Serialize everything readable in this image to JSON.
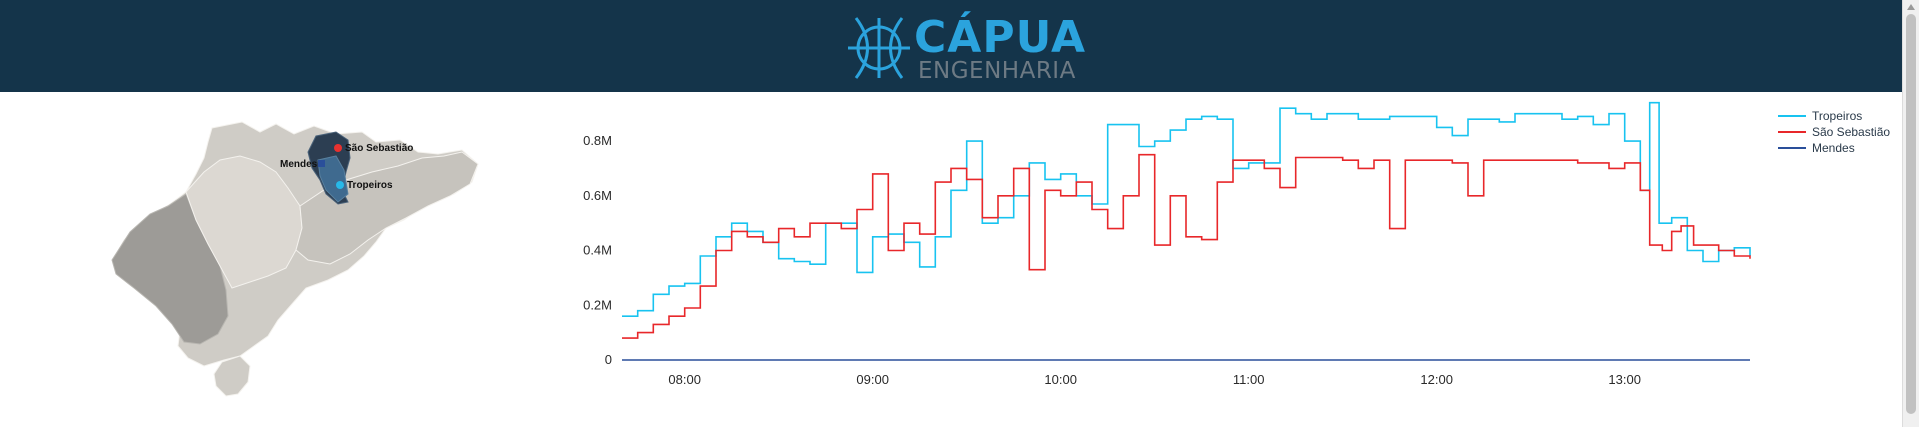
{
  "header": {
    "brand_title": "CÁPUA",
    "brand_subtitle": "ENGENHARIA",
    "logo_icon": "capua-globe-icon",
    "background_color": "#14344a",
    "accent_color": "#2ba3dd"
  },
  "map": {
    "markers": [
      {
        "label": "São Sebastião",
        "color": "#e8312f"
      },
      {
        "label": "Mendes",
        "color": "#2a4f9a"
      },
      {
        "label": "Tropeiros",
        "color": "#27b8e8"
      }
    ]
  },
  "chart_data": {
    "type": "line",
    "title": "",
    "xlabel": "",
    "ylabel": "",
    "x_ticks": [
      "08:00",
      "09:00",
      "10:00",
      "11:00",
      "12:00",
      "13:00"
    ],
    "y_ticks": [
      "0",
      "0.2M",
      "0.4M",
      "0.6M",
      "0.8M"
    ],
    "xlim": [
      "07:40",
      "13:40"
    ],
    "ylim": [
      0,
      0.95
    ],
    "grid": false,
    "legend_position": "top-right",
    "series": [
      {
        "name": "Tropeiros",
        "color": "#18c3f0",
        "points": [
          [
            "07:40",
            0.16
          ],
          [
            "07:45",
            0.18
          ],
          [
            "07:50",
            0.24
          ],
          [
            "07:55",
            0.27
          ],
          [
            "08:00",
            0.28
          ],
          [
            "08:05",
            0.38
          ],
          [
            "08:10",
            0.45
          ],
          [
            "08:15",
            0.5
          ],
          [
            "08:20",
            0.47
          ],
          [
            "08:25",
            0.43
          ],
          [
            "08:30",
            0.37
          ],
          [
            "08:35",
            0.36
          ],
          [
            "08:40",
            0.35
          ],
          [
            "08:45",
            0.5
          ],
          [
            "08:50",
            0.5
          ],
          [
            "08:55",
            0.32
          ],
          [
            "09:00",
            0.45
          ],
          [
            "09:05",
            0.46
          ],
          [
            "09:10",
            0.43
          ],
          [
            "09:15",
            0.34
          ],
          [
            "09:20",
            0.45
          ],
          [
            "09:25",
            0.62
          ],
          [
            "09:30",
            0.8
          ],
          [
            "09:35",
            0.5
          ],
          [
            "09:40",
            0.52
          ],
          [
            "09:45",
            0.6
          ],
          [
            "09:50",
            0.72
          ],
          [
            "09:55",
            0.66
          ],
          [
            "10:00",
            0.68
          ],
          [
            "10:05",
            0.6
          ],
          [
            "10:10",
            0.57
          ],
          [
            "10:15",
            0.86
          ],
          [
            "10:20",
            0.86
          ],
          [
            "10:25",
            0.78
          ],
          [
            "10:30",
            0.8
          ],
          [
            "10:35",
            0.84
          ],
          [
            "10:40",
            0.88
          ],
          [
            "10:45",
            0.89
          ],
          [
            "10:50",
            0.88
          ],
          [
            "10:55",
            0.7
          ],
          [
            "11:00",
            0.72
          ],
          [
            "11:05",
            0.72
          ],
          [
            "11:10",
            0.92
          ],
          [
            "11:15",
            0.9
          ],
          [
            "11:20",
            0.88
          ],
          [
            "11:25",
            0.9
          ],
          [
            "11:30",
            0.9
          ],
          [
            "11:35",
            0.88
          ],
          [
            "11:40",
            0.88
          ],
          [
            "11:45",
            0.89
          ],
          [
            "11:50",
            0.89
          ],
          [
            "11:55",
            0.89
          ],
          [
            "12:00",
            0.85
          ],
          [
            "12:05",
            0.82
          ],
          [
            "12:10",
            0.88
          ],
          [
            "12:15",
            0.88
          ],
          [
            "12:20",
            0.87
          ],
          [
            "12:25",
            0.9
          ],
          [
            "12:30",
            0.9
          ],
          [
            "12:35",
            0.9
          ],
          [
            "12:40",
            0.88
          ],
          [
            "12:45",
            0.89
          ],
          [
            "12:50",
            0.86
          ],
          [
            "12:55",
            0.9
          ],
          [
            "13:00",
            0.8
          ],
          [
            "13:05",
            0.62
          ],
          [
            "13:08",
            0.94
          ],
          [
            "13:11",
            0.5
          ],
          [
            "13:15",
            0.52
          ],
          [
            "13:20",
            0.4
          ],
          [
            "13:25",
            0.36
          ],
          [
            "13:30",
            0.4
          ],
          [
            "13:35",
            0.41
          ],
          [
            "13:40",
            0.38
          ]
        ]
      },
      {
        "name": "São Sebastião",
        "color": "#e8272a",
        "points": [
          [
            "07:40",
            0.08
          ],
          [
            "07:45",
            0.1
          ],
          [
            "07:50",
            0.13
          ],
          [
            "07:55",
            0.16
          ],
          [
            "08:00",
            0.19
          ],
          [
            "08:05",
            0.27
          ],
          [
            "08:10",
            0.4
          ],
          [
            "08:15",
            0.47
          ],
          [
            "08:20",
            0.45
          ],
          [
            "08:25",
            0.43
          ],
          [
            "08:30",
            0.48
          ],
          [
            "08:35",
            0.45
          ],
          [
            "08:40",
            0.5
          ],
          [
            "08:45",
            0.5
          ],
          [
            "08:50",
            0.48
          ],
          [
            "08:55",
            0.55
          ],
          [
            "09:00",
            0.68
          ],
          [
            "09:05",
            0.4
          ],
          [
            "09:10",
            0.5
          ],
          [
            "09:15",
            0.46
          ],
          [
            "09:20",
            0.65
          ],
          [
            "09:25",
            0.7
          ],
          [
            "09:30",
            0.66
          ],
          [
            "09:35",
            0.52
          ],
          [
            "09:40",
            0.6
          ],
          [
            "09:45",
            0.7
          ],
          [
            "09:50",
            0.33
          ],
          [
            "09:55",
            0.62
          ],
          [
            "10:00",
            0.6
          ],
          [
            "10:05",
            0.65
          ],
          [
            "10:10",
            0.55
          ],
          [
            "10:15",
            0.48
          ],
          [
            "10:20",
            0.6
          ],
          [
            "10:25",
            0.75
          ],
          [
            "10:30",
            0.42
          ],
          [
            "10:35",
            0.6
          ],
          [
            "10:40",
            0.45
          ],
          [
            "10:45",
            0.44
          ],
          [
            "10:50",
            0.65
          ],
          [
            "10:55",
            0.73
          ],
          [
            "11:00",
            0.73
          ],
          [
            "11:05",
            0.7
          ],
          [
            "11:10",
            0.63
          ],
          [
            "11:15",
            0.74
          ],
          [
            "11:20",
            0.74
          ],
          [
            "11:25",
            0.74
          ],
          [
            "11:30",
            0.73
          ],
          [
            "11:35",
            0.7
          ],
          [
            "11:40",
            0.73
          ],
          [
            "11:45",
            0.48
          ],
          [
            "11:50",
            0.73
          ],
          [
            "11:55",
            0.73
          ],
          [
            "12:00",
            0.73
          ],
          [
            "12:05",
            0.72
          ],
          [
            "12:10",
            0.6
          ],
          [
            "12:15",
            0.73
          ],
          [
            "12:20",
            0.73
          ],
          [
            "12:25",
            0.73
          ],
          [
            "12:30",
            0.73
          ],
          [
            "12:35",
            0.73
          ],
          [
            "12:40",
            0.73
          ],
          [
            "12:45",
            0.72
          ],
          [
            "12:50",
            0.72
          ],
          [
            "12:55",
            0.7
          ],
          [
            "13:00",
            0.72
          ],
          [
            "13:05",
            0.62
          ],
          [
            "13:08",
            0.42
          ],
          [
            "13:12",
            0.4
          ],
          [
            "13:15",
            0.47
          ],
          [
            "13:18",
            0.49
          ],
          [
            "13:22",
            0.42
          ],
          [
            "13:26",
            0.42
          ],
          [
            "13:30",
            0.4
          ],
          [
            "13:35",
            0.38
          ],
          [
            "13:40",
            0.37
          ]
        ]
      },
      {
        "name": "Mendes",
        "color": "#2a4f9a",
        "points": [
          [
            "07:40",
            0.0
          ],
          [
            "13:40",
            0.0
          ]
        ]
      }
    ]
  }
}
